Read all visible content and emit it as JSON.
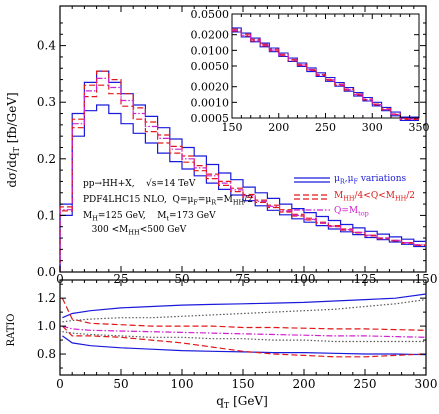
{
  "chart_data": [
    {
      "type": "line",
      "panel": "main",
      "ylabel": "dσ/dq",
      "ylabel_sub": "T",
      "ylabel_unit": " [fb/GeV]",
      "xlim": [
        0,
        150
      ],
      "ylim": [
        0,
        0.47
      ],
      "x_ticks": [
        "0",
        "25",
        "50",
        "75",
        "100",
        "125",
        "150"
      ],
      "y_ticks": [
        "0.0",
        "0.1",
        "0.2",
        "0.3",
        "0.4"
      ],
      "x_tick_values": [
        0,
        25,
        50,
        75,
        100,
        125,
        150
      ],
      "y_tick_values": [
        0,
        0.1,
        0.2,
        0.3,
        0.4
      ],
      "bin_edges": [
        0,
        5,
        10,
        15,
        20,
        25,
        30,
        35,
        40,
        45,
        50,
        55,
        60,
        65,
        70,
        75,
        80,
        85,
        90,
        95,
        100,
        105,
        110,
        115,
        120,
        125,
        130,
        135,
        140,
        145,
        150
      ],
      "series": [
        {
          "name": "μR,μF variations",
          "style": "solid",
          "color": "#1a1adc",
          "values": [
            0.12,
            0.28,
            0.335,
            0.355,
            0.335,
            0.315,
            0.295,
            0.275,
            0.255,
            0.235,
            0.22,
            0.205,
            0.19,
            0.175,
            0.163,
            0.15,
            0.14,
            0.13,
            0.12,
            0.112,
            0.105,
            0.098,
            0.091,
            0.084,
            0.078,
            0.072,
            0.067,
            0.062,
            0.058,
            0.054
          ]
        },
        {
          "style": "solid",
          "color": "#1a1adc",
          "values": [
            0.1,
            0.24,
            0.285,
            0.295,
            0.28,
            0.262,
            0.245,
            0.228,
            0.21,
            0.195,
            0.182,
            0.17,
            0.157,
            0.146,
            0.136,
            0.126,
            0.117,
            0.109,
            0.101,
            0.094,
            0.088,
            0.082,
            0.076,
            0.071,
            0.066,
            0.061,
            0.057,
            0.053,
            0.049,
            0.045
          ]
        },
        {
          "name": "MHH/4<Q<MHH/2",
          "style": "dashed",
          "color": "#e01818",
          "values": [
            0.115,
            0.27,
            0.33,
            0.355,
            0.34,
            0.315,
            0.29,
            0.265,
            0.242,
            0.222,
            0.205,
            0.188,
            0.173,
            0.16,
            0.148,
            0.137,
            0.127,
            0.118,
            0.11,
            0.102,
            0.095,
            0.088,
            0.082,
            0.076,
            0.07,
            0.065,
            0.06,
            0.056,
            0.052,
            0.048
          ]
        },
        {
          "style": "dashed",
          "color": "#e01818",
          "values": [
            0.108,
            0.255,
            0.31,
            0.33,
            0.315,
            0.293,
            0.27,
            0.248,
            0.228,
            0.21,
            0.194,
            0.179,
            0.165,
            0.153,
            0.142,
            0.132,
            0.123,
            0.114,
            0.106,
            0.099,
            0.092,
            0.086,
            0.08,
            0.074,
            0.069,
            0.064,
            0.059,
            0.055,
            0.051,
            0.047
          ]
        },
        {
          "name": "Q=Mtop",
          "style": "dashdot",
          "color": "#d020d0",
          "values": [
            0.11,
            0.262,
            0.32,
            0.342,
            0.326,
            0.303,
            0.28,
            0.257,
            0.236,
            0.217,
            0.2,
            0.184,
            0.17,
            0.157,
            0.145,
            0.135,
            0.125,
            0.116,
            0.108,
            0.1,
            0.093,
            0.087,
            0.081,
            0.075,
            0.07,
            0.065,
            0.06,
            0.056,
            0.052,
            0.048
          ]
        }
      ],
      "annotations": [
        {
          "lines": [
            {
              "parts": [
                {
                  "t": "pp→HH+X,"
                },
                {
                  "t": "    √s=14 TeV"
                }
              ]
            },
            {
              "parts": [
                {
                  "t": "PDF4LHC15 NLO,  Q=μ"
                },
                {
                  "t": "F",
                  "sub": true
                },
                {
                  "t": "=μ"
                },
                {
                  "t": "R",
                  "sub": true
                },
                {
                  "t": "=M"
                },
                {
                  "t": "HH",
                  "sub": true
                },
                {
                  "t": "/2"
                }
              ]
            },
            {
              "parts": [
                {
                  "t": "M"
                },
                {
                  "t": "H",
                  "sub": true
                },
                {
                  "t": "=125 GeV,    M"
                },
                {
                  "t": "t",
                  "sub": true
                },
                {
                  "t": "=173 GeV"
                }
              ]
            },
            {
              "parts": [
                {
                  "t": "   300 <M"
                },
                {
                  "t": "HH",
                  "sub": true
                },
                {
                  "t": "<500 GeV"
                }
              ]
            }
          ]
        }
      ],
      "legend": [
        {
          "color": "#1a1adc",
          "style": "solid",
          "parts": [
            {
              "t": "μ"
            },
            {
              "t": "R",
              "sub": true
            },
            {
              "t": ",μ"
            },
            {
              "t": "F",
              "sub": true
            },
            {
              "t": " variations"
            }
          ]
        },
        {
          "color": "#e01818",
          "style": "dashed",
          "parts": [
            {
              "t": "M"
            },
            {
              "t": "HH",
              "sub": true
            },
            {
              "t": "/4<Q<M"
            },
            {
              "t": "HH",
              "sub": true
            },
            {
              "t": "/2"
            }
          ]
        },
        {
          "color": "#d020d0",
          "style": "dashdot",
          "parts": [
            {
              "t": "Q=M"
            },
            {
              "t": "top",
              "sub": true
            }
          ]
        }
      ]
    },
    {
      "type": "line",
      "panel": "inset",
      "log_y": true,
      "xlim": [
        150,
        350
      ],
      "ylim": [
        0.0005,
        0.05
      ],
      "x_ticks": [
        "150",
        "200",
        "250",
        "300",
        "350"
      ],
      "x_tick_values": [
        150,
        200,
        250,
        300,
        350
      ],
      "y_ticks": [
        "0.0500",
        "0.0200",
        "0.0100",
        "0.0050",
        "0.0020",
        "0.0010",
        "0.0005"
      ],
      "y_tick_values": [
        0.05,
        0.02,
        0.01,
        0.005,
        0.002,
        0.001,
        0.0005
      ],
      "bin_edges": [
        150,
        160,
        170,
        180,
        190,
        200,
        210,
        220,
        230,
        240,
        250,
        260,
        270,
        280,
        290,
        300,
        310,
        320,
        330,
        340,
        350
      ],
      "series": [
        {
          "style": "solid",
          "color": "#1a1adc",
          "values": [
            0.027,
            0.0215,
            0.0172,
            0.0138,
            0.0111,
            0.0089,
            0.0071,
            0.0057,
            0.0046,
            0.0037,
            0.003,
            0.0024,
            0.00192,
            0.00154,
            0.00124,
            0.001,
            0.0008,
            0.00065,
            0.00052,
            0.00052
          ]
        },
        {
          "style": "solid",
          "color": "#1a1adc",
          "values": [
            0.0225,
            0.0181,
            0.0146,
            0.0117,
            0.0094,
            0.0076,
            0.0061,
            0.0049,
            0.0039,
            0.00315,
            0.00254,
            0.00204,
            0.00164,
            0.00132,
            0.00106,
            0.00085,
            0.00069,
            0.00055,
            0.00045,
            0.00045
          ]
        },
        {
          "style": "dashed",
          "color": "#e01818",
          "values": [
            0.0255,
            0.0204,
            0.0163,
            0.0131,
            0.0105,
            0.0084,
            0.0067,
            0.0054,
            0.0043,
            0.00345,
            0.00278,
            0.00223,
            0.00179,
            0.00144,
            0.00116,
            0.00093,
            0.00075,
            0.0006,
            0.00049,
            0.00049
          ]
        },
        {
          "style": "dashed",
          "color": "#e01818",
          "values": [
            0.0235,
            0.0189,
            0.0152,
            0.0122,
            0.0098,
            0.0079,
            0.0063,
            0.0051,
            0.0041,
            0.0033,
            0.00265,
            0.00213,
            0.00171,
            0.00138,
            0.00111,
            0.00089,
            0.00072,
            0.00058,
            0.00047,
            0.00047
          ]
        },
        {
          "style": "dashdot",
          "color": "#d020d0",
          "values": [
            0.0243,
            0.0195,
            0.0157,
            0.0126,
            0.0101,
            0.0081,
            0.0065,
            0.0052,
            0.0042,
            0.00338,
            0.00272,
            0.00218,
            0.00175,
            0.00141,
            0.00113,
            0.00091,
            0.00073,
            0.00059,
            0.00048,
            0.00048
          ]
        }
      ]
    },
    {
      "type": "line",
      "panel": "ratio",
      "ylabel": "RATIO",
      "xlabel": "q",
      "xlabel_sub": "T",
      "xlabel_unit": " [GeV]",
      "xlim": [
        0,
        300
      ],
      "ylim": [
        0.65,
        1.33
      ],
      "x_ticks": [
        "0",
        "50",
        "100",
        "150",
        "200",
        "250",
        "300"
      ],
      "x_tick_values": [
        0,
        50,
        100,
        150,
        200,
        250,
        300
      ],
      "y_ticks": [
        "0.8",
        "1.0",
        "1.2"
      ],
      "y_tick_values": [
        0.8,
        1.0,
        1.2
      ],
      "x": [
        2,
        10,
        25,
        50,
        75,
        100,
        125,
        150,
        175,
        200,
        225,
        250,
        275,
        300
      ],
      "series": [
        {
          "style": "solid",
          "color": "#1a1adc",
          "values": [
            1.06,
            1.09,
            1.11,
            1.13,
            1.14,
            1.15,
            1.155,
            1.16,
            1.165,
            1.17,
            1.18,
            1.19,
            1.2,
            1.23
          ]
        },
        {
          "style": "solid",
          "color": "#1a1adc",
          "values": [
            0.93,
            0.88,
            0.86,
            0.845,
            0.835,
            0.825,
            0.82,
            0.815,
            0.81,
            0.81,
            0.805,
            0.8,
            0.8,
            0.795
          ]
        },
        {
          "style": "dashed",
          "color": "#e01818",
          "values": [
            1.2,
            1.05,
            1.02,
            1.01,
            1.0,
            1.0,
            1.0,
            0.99,
            0.99,
            0.985,
            0.98,
            0.98,
            0.975,
            0.97
          ]
        },
        {
          "style": "dashed",
          "color": "#e01818",
          "values": [
            1.0,
            0.93,
            0.93,
            0.92,
            0.9,
            0.88,
            0.85,
            0.82,
            0.8,
            0.79,
            0.78,
            0.78,
            0.79,
            0.8
          ]
        },
        {
          "style": "dotted",
          "color": "#555555",
          "values": [
            1.03,
            1.04,
            1.05,
            1.06,
            1.06,
            1.07,
            1.08,
            1.09,
            1.1,
            1.11,
            1.12,
            1.14,
            1.16,
            1.19
          ]
        },
        {
          "style": "dotted",
          "color": "#555555",
          "values": [
            0.96,
            0.95,
            0.94,
            0.93,
            0.92,
            0.92,
            0.91,
            0.91,
            0.9,
            0.9,
            0.89,
            0.89,
            0.89,
            0.89
          ]
        },
        {
          "style": "dashdot",
          "color": "#d020d0",
          "values": [
            1.0,
            0.98,
            0.97,
            0.965,
            0.96,
            0.955,
            0.95,
            0.945,
            0.94,
            0.935,
            0.93,
            0.93,
            0.925,
            0.92
          ]
        }
      ]
    }
  ]
}
